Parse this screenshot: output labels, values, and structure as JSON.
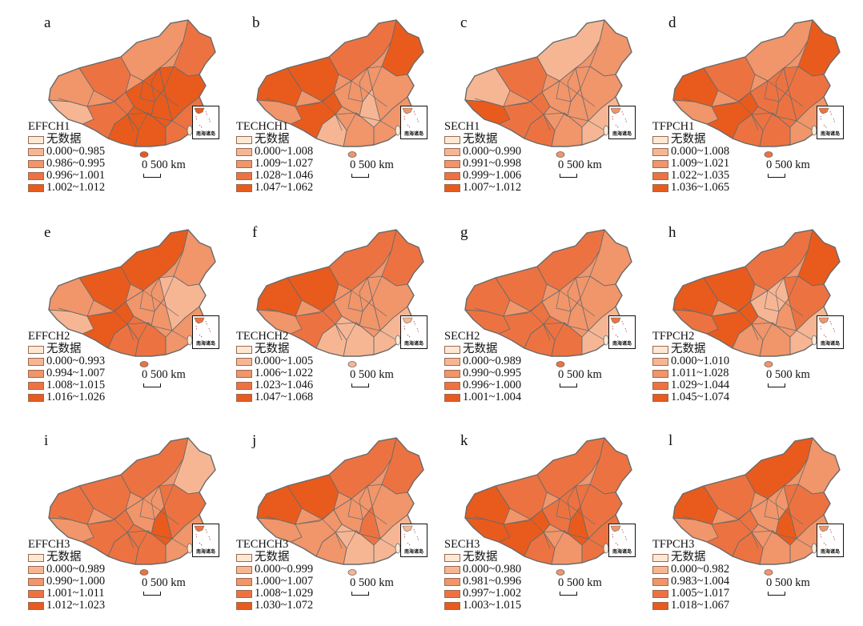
{
  "inset_label": "南海诸岛",
  "scale_text": "0 500 km",
  "no_data_label": "无数据",
  "colors": {
    "no_data": "#fde8d4",
    "class1": "#f6b694",
    "class2": "#f1956a",
    "class3": "#ec7341",
    "class4": "#e85b1d",
    "border": "#6a6a6a"
  },
  "panels": [
    {
      "letter": "a",
      "legend_title": "EFFCH1",
      "classes": [
        "0.000~0.985",
        "0.986~0.995",
        "0.996~1.001",
        "1.002~1.012"
      ]
    },
    {
      "letter": "b",
      "legend_title": "TECHCH1",
      "classes": [
        "0.000~1.008",
        "1.009~1.027",
        "1.028~1.046",
        "1.047~1.062"
      ]
    },
    {
      "letter": "c",
      "legend_title": "SECH1",
      "classes": [
        "0.000~0.990",
        "0.991~0.998",
        "0.999~1.006",
        "1.007~1.012"
      ]
    },
    {
      "letter": "d",
      "legend_title": "TFPCH1",
      "classes": [
        "0.000~1.008",
        "1.009~1.021",
        "1.022~1.035",
        "1.036~1.065"
      ]
    },
    {
      "letter": "e",
      "legend_title": "EFFCH2",
      "classes": [
        "0.000~0.993",
        "0.994~1.007",
        "1.008~1.015",
        "1.016~1.026"
      ]
    },
    {
      "letter": "f",
      "legend_title": "TECHCH2",
      "classes": [
        "0.000~1.005",
        "1.006~1.022",
        "1.023~1.046",
        "1.047~1.068"
      ]
    },
    {
      "letter": "g",
      "legend_title": "SECH2",
      "classes": [
        "0.000~0.989",
        "0.990~0.995",
        "0.996~1.000",
        "1.001~1.004"
      ]
    },
    {
      "letter": "h",
      "legend_title": "TFPCH2",
      "classes": [
        "0.000~1.010",
        "1.011~1.028",
        "1.029~1.044",
        "1.045~1.074"
      ]
    },
    {
      "letter": "i",
      "legend_title": "EFFCH3",
      "classes": [
        "0.000~0.989",
        "0.990~1.000",
        "1.001~1.011",
        "1.012~1.023"
      ]
    },
    {
      "letter": "j",
      "legend_title": "TECHCH3",
      "classes": [
        "0.000~0.999",
        "1.000~1.007",
        "1.008~1.029",
        "1.030~1.072"
      ]
    },
    {
      "letter": "k",
      "legend_title": "SECH3",
      "classes": [
        "0.000~0.980",
        "0.981~0.996",
        "0.997~1.002",
        "1.003~1.015"
      ]
    },
    {
      "letter": "l",
      "legend_title": "TFPCH3",
      "classes": [
        "0.000~0.982",
        "0.983~1.004",
        "1.005~1.017",
        "1.018~1.067"
      ]
    }
  ]
}
